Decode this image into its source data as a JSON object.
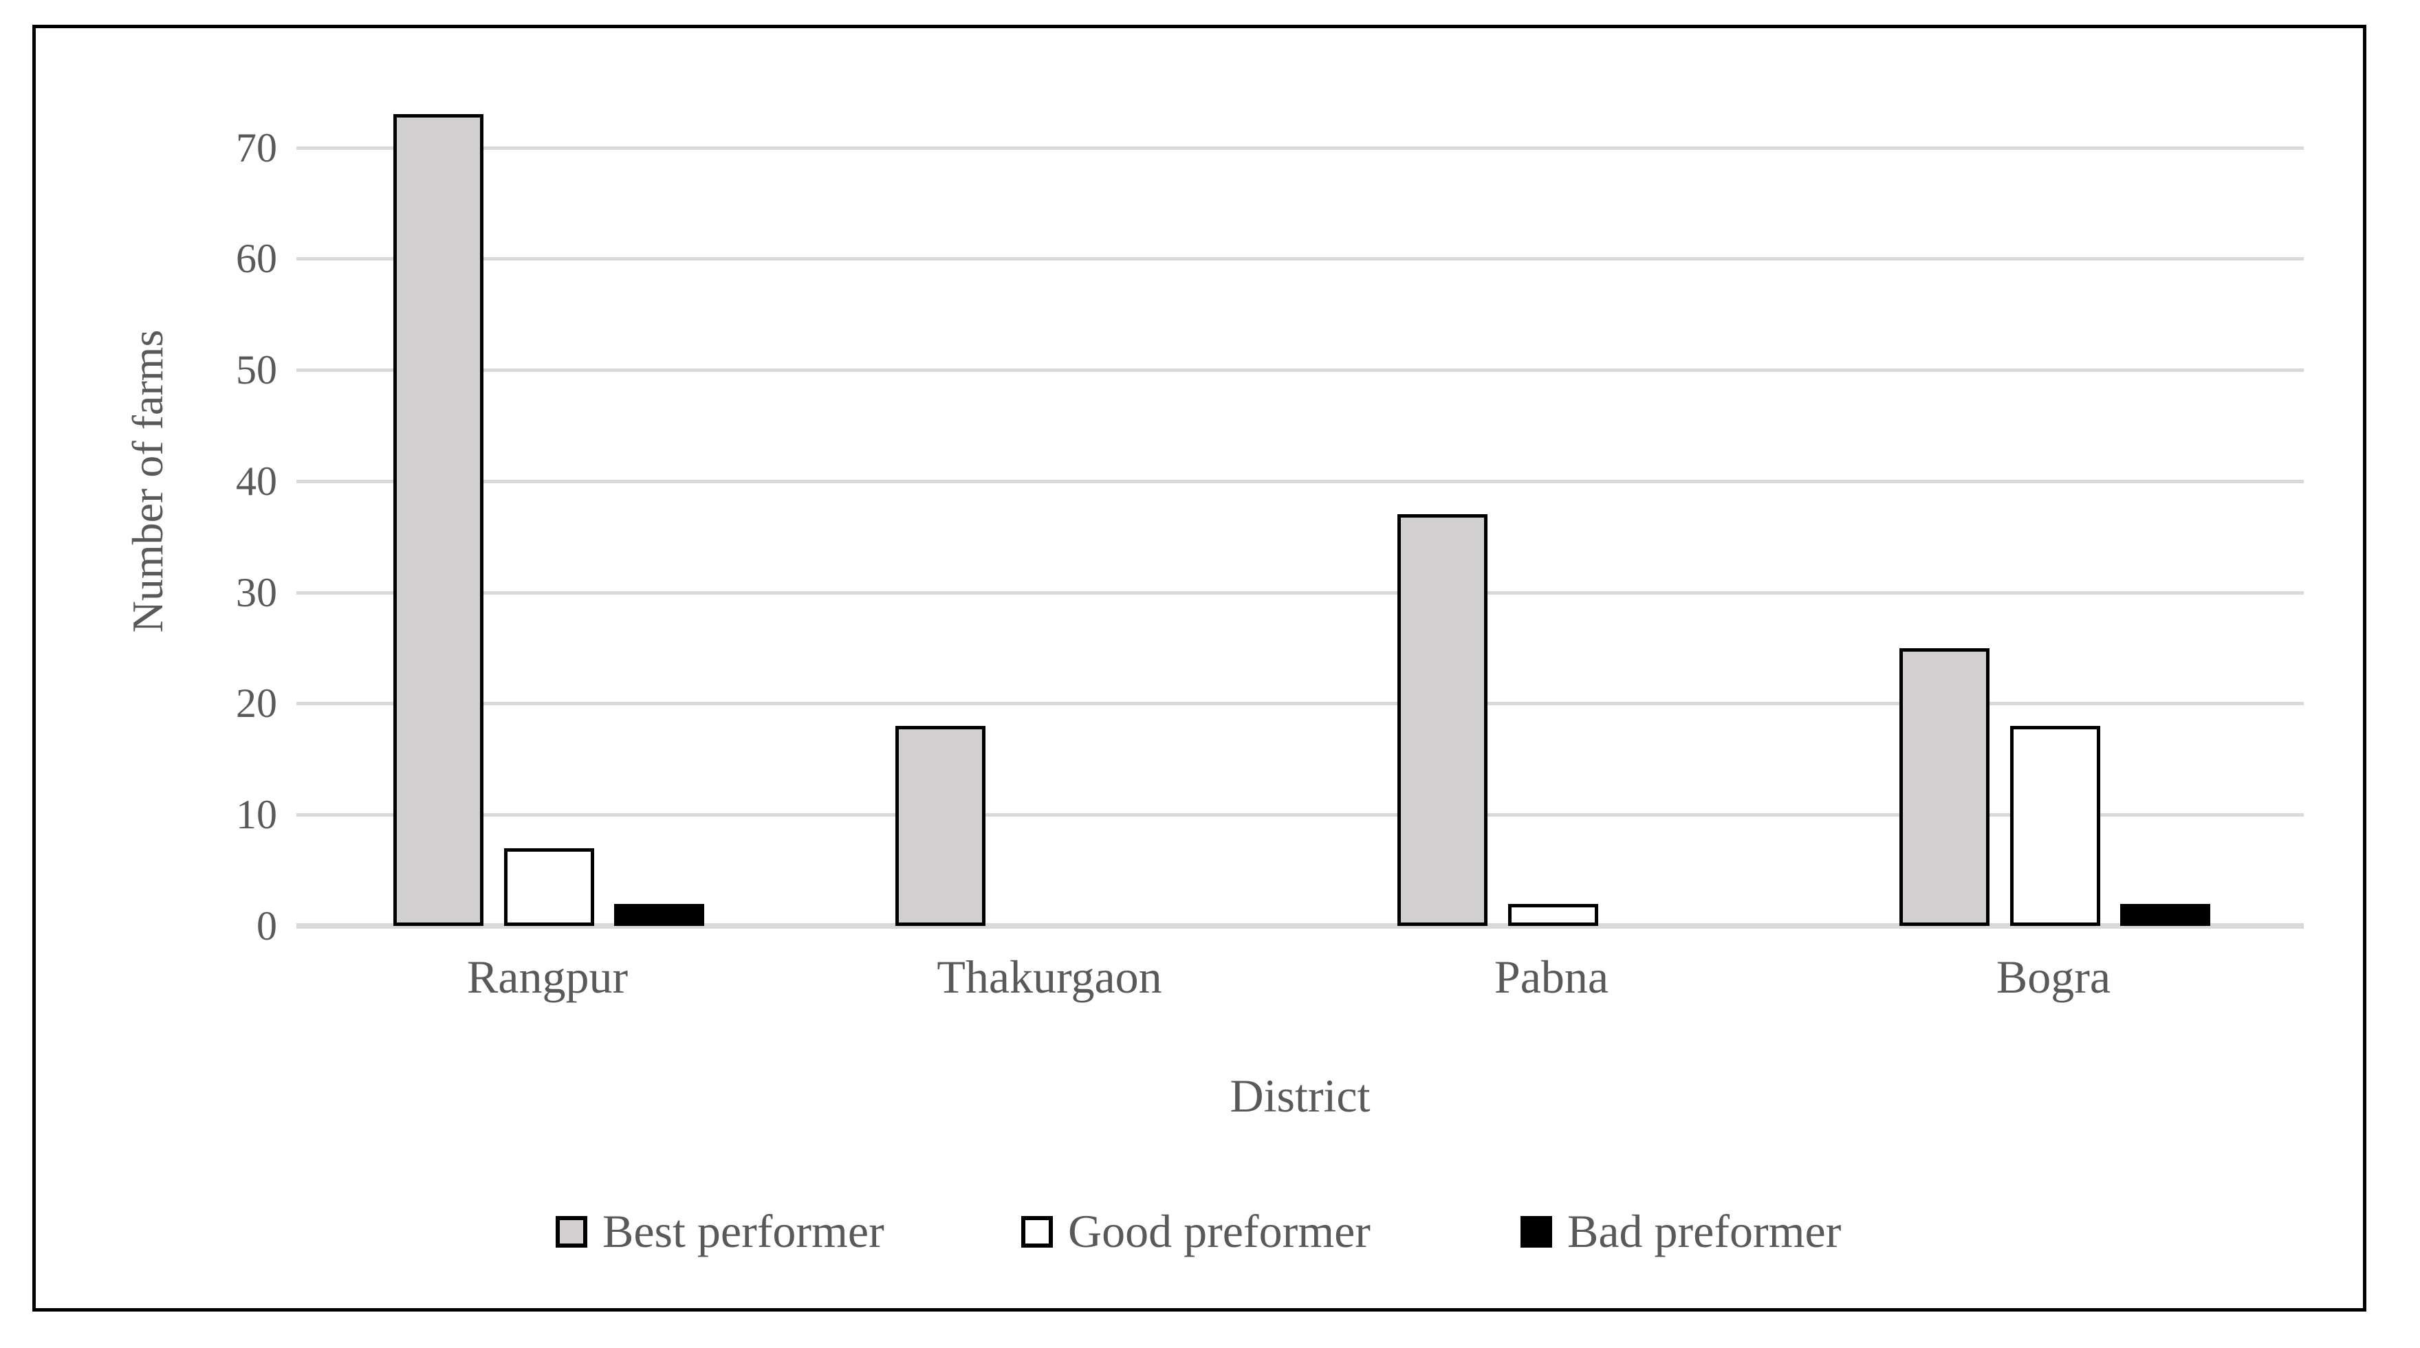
{
  "chart_data": {
    "type": "bar",
    "title": "",
    "xlabel": "District",
    "ylabel": "Number of farms",
    "categories": [
      "Rangpur",
      "Thakurgaon",
      "Pabna",
      "Bogra"
    ],
    "series": [
      {
        "name": "Best performer",
        "values": [
          73,
          18,
          37,
          25
        ],
        "fill": "#d1cfcf",
        "stroke": "#000000"
      },
      {
        "name": "Good preformer",
        "values": [
          7,
          0,
          2,
          18
        ],
        "fill": "#ffffff",
        "stroke": "#000000"
      },
      {
        "name": "Bad preformer",
        "values": [
          2,
          0,
          0,
          2
        ],
        "fill": "#000000",
        "stroke": "#000000"
      }
    ],
    "ylim": [
      0,
      73
    ],
    "yticks": [
      0,
      10,
      20,
      30,
      40,
      50,
      60,
      70
    ],
    "grid": true,
    "legend_position": "bottom"
  },
  "colors": {
    "text": "#595959",
    "gridline": "#d9d9d9",
    "frame": "#000000",
    "background": "#ffffff"
  }
}
